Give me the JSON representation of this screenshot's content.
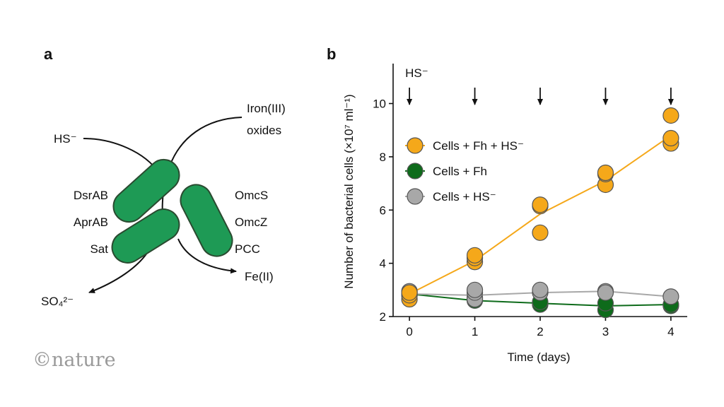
{
  "figure": {
    "panel_a_label": "a",
    "panel_b_label": "b",
    "watermark": "©nature"
  },
  "panel_a": {
    "hs": "HS⁻",
    "iron_line1": "Iron(III)",
    "iron_line2": "oxides",
    "protein_left": [
      "DsrAB",
      "AprAB",
      "Sat"
    ],
    "protein_right": [
      "OmcS",
      "OmcZ",
      "PCC"
    ],
    "fe_product": "Fe(II)",
    "so4_product": "SO₄²⁻",
    "bacterium_color": "#1e9a55",
    "bacterium_outline": "#2a4a30"
  },
  "chart_data": {
    "type": "scatter",
    "xlabel": "Time (days)",
    "ylabel": "Number of bacterial cells (×10⁷ ml⁻¹)",
    "xlim": [
      -0.25,
      4.25
    ],
    "ylim": [
      2,
      11.5
    ],
    "xticks": [
      0,
      1,
      2,
      3,
      4
    ],
    "yticks": [
      2,
      4,
      6,
      8,
      10
    ],
    "annotation": "HS⁻",
    "hs_addition_days": [
      0,
      1,
      2,
      3,
      4
    ],
    "legend_position": "upper-left",
    "series": [
      {
        "name": "Cells + Fh + HS⁻",
        "color": "#f5a81a",
        "line_color": "#f5a81a",
        "mean": [
          [
            0,
            2.85
          ],
          [
            1,
            4.1
          ],
          [
            2,
            5.85
          ],
          [
            3,
            7.1
          ],
          [
            4,
            8.8
          ]
        ],
        "points": [
          [
            0,
            2.65
          ],
          [
            0,
            2.8
          ],
          [
            0,
            2.9
          ],
          [
            1,
            4.05
          ],
          [
            1,
            4.2
          ],
          [
            1,
            4.3
          ],
          [
            2,
            5.15
          ],
          [
            2,
            6.15
          ],
          [
            2,
            6.2
          ],
          [
            3,
            6.95
          ],
          [
            3,
            7.35
          ],
          [
            3,
            7.4
          ],
          [
            4,
            8.5
          ],
          [
            4,
            8.7
          ],
          [
            4,
            9.55
          ]
        ]
      },
      {
        "name": "Cells + Fh",
        "color": "#0e6b1b",
        "line_color": "#0e6b1b",
        "mean": [
          [
            0,
            2.85
          ],
          [
            1,
            2.6
          ],
          [
            2,
            2.5
          ],
          [
            3,
            2.4
          ],
          [
            4,
            2.45
          ]
        ],
        "points": [
          [
            0,
            2.8
          ],
          [
            0,
            2.85
          ],
          [
            1,
            2.6
          ],
          [
            1,
            2.7
          ],
          [
            2,
            2.45
          ],
          [
            2,
            2.55
          ],
          [
            3,
            2.25
          ],
          [
            3,
            2.5
          ],
          [
            4,
            2.4
          ],
          [
            4,
            2.45
          ]
        ]
      },
      {
        "name": "Cells + HS⁻",
        "color": "#a8a8a8",
        "line_color": "#a8a8a8",
        "mean": [
          [
            0,
            2.85
          ],
          [
            1,
            2.8
          ],
          [
            2,
            2.9
          ],
          [
            3,
            2.95
          ],
          [
            4,
            2.75
          ]
        ],
        "points": [
          [
            0,
            2.9
          ],
          [
            0,
            2.95
          ],
          [
            1,
            2.65
          ],
          [
            1,
            2.9
          ],
          [
            1,
            3.0
          ],
          [
            2,
            2.9
          ],
          [
            2,
            3.0
          ],
          [
            3,
            2.95
          ],
          [
            3,
            2.9
          ],
          [
            4,
            2.75
          ]
        ]
      }
    ]
  }
}
